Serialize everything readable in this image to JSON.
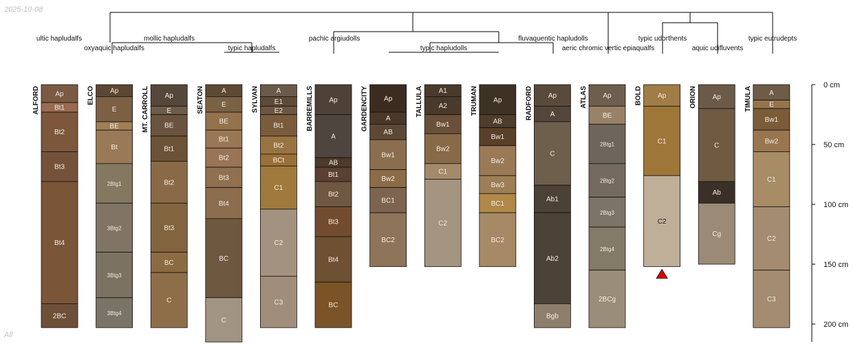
{
  "corner": {
    "date": "2025-10-08",
    "tag": "All"
  },
  "depth_axis": {
    "unit": "cm",
    "max_depth": 215,
    "ticks": [
      0,
      50,
      100,
      150,
      200
    ],
    "labels": [
      "0 cm",
      "50 cm",
      "100 cm",
      "150 cm",
      "200 cm"
    ]
  },
  "taxa": [
    "ultic hapludalfs",
    "oxyaquic hapludalfs",
    "mollic hapludalfs",
    "typic hapludalfs",
    "pachic argiudolls",
    "typic hapludolls",
    "fluvaquentic hapludolls",
    "aeric chromic vertic epiaqualfs",
    "typic udorthents",
    "aquic udifluvents",
    "typic eutrudepts"
  ],
  "marker": {
    "profile": "BOLD",
    "color": "#dd0000"
  },
  "profiles": [
    {
      "name": "ALFORD",
      "taxon": "ultic hapludalfs",
      "horizons": [
        {
          "name": "Ap",
          "top": 0,
          "bottom": 15,
          "color": "#7a5a42"
        },
        {
          "name": "Bt1",
          "top": 15,
          "bottom": 23,
          "color": "#9a6a52"
        },
        {
          "name": "Bt2",
          "top": 23,
          "bottom": 56,
          "color": "#7c573c"
        },
        {
          "name": "Bt3",
          "top": 56,
          "bottom": 81,
          "color": "#74523a"
        },
        {
          "name": "Bt4",
          "top": 81,
          "bottom": 183,
          "color": "#7b5538"
        },
        {
          "name": "2BC",
          "top": 183,
          "bottom": 203,
          "color": "#6e5038"
        }
      ]
    },
    {
      "name": "ELCO",
      "taxon": "oxyaquic hapludalfs",
      "horizons": [
        {
          "name": "Ap",
          "top": 0,
          "bottom": 10,
          "color": "#5c4634"
        },
        {
          "name": "E",
          "top": 10,
          "bottom": 31,
          "color": "#7c6044"
        },
        {
          "name": "BE",
          "top": 31,
          "bottom": 38,
          "color": "#a07e56"
        },
        {
          "name": "Bt",
          "top": 38,
          "bottom": 66,
          "color": "#9a7a56"
        },
        {
          "name": "2Btg1",
          "top": 66,
          "bottom": 99,
          "color": "#857860"
        },
        {
          "name": "3Btg2",
          "top": 99,
          "bottom": 140,
          "color": "#807564"
        },
        {
          "name": "3Btg3",
          "top": 140,
          "bottom": 178,
          "color": "#7c7262"
        },
        {
          "name": "3Btg4",
          "top": 178,
          "bottom": 203,
          "color": "#7a7466"
        }
      ]
    },
    {
      "name": "MT. CARROLL",
      "taxon": "mollic hapludalfs",
      "horizons": [
        {
          "name": "Ap",
          "top": 0,
          "bottom": 18,
          "color": "#55473a"
        },
        {
          "name": "E",
          "top": 18,
          "bottom": 25,
          "color": "#6e5c48"
        },
        {
          "name": "BE",
          "top": 25,
          "bottom": 43,
          "color": "#6a5440"
        },
        {
          "name": "Bt1",
          "top": 43,
          "bottom": 64,
          "color": "#6c5236"
        },
        {
          "name": "Bt2",
          "top": 64,
          "bottom": 99,
          "color": "#8a6a46"
        },
        {
          "name": "Bt3",
          "top": 99,
          "bottom": 140,
          "color": "#82643f"
        },
        {
          "name": "BC",
          "top": 140,
          "bottom": 157,
          "color": "#8c6a42"
        },
        {
          "name": "C",
          "top": 157,
          "bottom": 203,
          "color": "#8e6e48"
        }
      ]
    },
    {
      "name": "SEATON",
      "taxon": "typic hapludalfs",
      "horizons": [
        {
          "name": "A",
          "top": 0,
          "bottom": 10,
          "color": "#5e4a34"
        },
        {
          "name": "E",
          "top": 10,
          "bottom": 23,
          "color": "#7c6244"
        },
        {
          "name": "BE",
          "top": 23,
          "bottom": 38,
          "color": "#94724e"
        },
        {
          "name": "Bt1",
          "top": 38,
          "bottom": 53,
          "color": "#9a7754"
        },
        {
          "name": "Bt2",
          "top": 53,
          "bottom": 69,
          "color": "#9a7456"
        },
        {
          "name": "Bt3",
          "top": 69,
          "bottom": 86,
          "color": "#907050"
        },
        {
          "name": "Bt4",
          "top": 86,
          "bottom": 112,
          "color": "#8c6d4e"
        },
        {
          "name": "BC",
          "top": 112,
          "bottom": 178,
          "color": "#6e5840"
        },
        {
          "name": "C",
          "top": 178,
          "bottom": 215,
          "color": "#a29482"
        }
      ]
    },
    {
      "name": "SYLVAN",
      "taxon": "typic hapludalfs",
      "horizons": [
        {
          "name": "A",
          "top": 0,
          "bottom": 10,
          "color": "#6a5a4a"
        },
        {
          "name": "E1",
          "top": 10,
          "bottom": 18,
          "color": "#5e4a36"
        },
        {
          "name": "E2",
          "top": 18,
          "bottom": 25,
          "color": "#6c5640"
        },
        {
          "name": "Bt1",
          "top": 25,
          "bottom": 43,
          "color": "#7a5c3c"
        },
        {
          "name": "Bt2",
          "top": 43,
          "bottom": 58,
          "color": "#9a7440"
        },
        {
          "name": "BCt",
          "top": 58,
          "bottom": 68,
          "color": "#9a7038"
        },
        {
          "name": "C1",
          "top": 68,
          "bottom": 104,
          "color": "#a07a3c"
        },
        {
          "name": "C2",
          "top": 104,
          "bottom": 160,
          "color": "#a49280"
        },
        {
          "name": "C3",
          "top": 160,
          "bottom": 203,
          "color": "#a08e7a"
        }
      ]
    },
    {
      "name": "BARREMILLS",
      "taxon": "pachic argiudolls",
      "horizons": [
        {
          "name": "Ap",
          "top": 0,
          "bottom": 25,
          "color": "#4e4238"
        },
        {
          "name": "A",
          "top": 25,
          "bottom": 61,
          "color": "#4e463e"
        },
        {
          "name": "AB",
          "top": 61,
          "bottom": 69,
          "color": "#4e3a2a"
        },
        {
          "name": "Bt1",
          "top": 69,
          "bottom": 81,
          "color": "#5a4030"
        },
        {
          "name": "Bt2",
          "top": 81,
          "bottom": 102,
          "color": "#6e5842"
        },
        {
          "name": "Bt3",
          "top": 102,
          "bottom": 127,
          "color": "#724c2e"
        },
        {
          "name": "Bt4",
          "top": 127,
          "bottom": 165,
          "color": "#6e5032"
        },
        {
          "name": "BC",
          "top": 165,
          "bottom": 203,
          "color": "#7a5426"
        }
      ]
    },
    {
      "name": "GARDENCITY",
      "taxon": "typic hapludolls",
      "horizons": [
        {
          "name": "Ap",
          "top": 0,
          "bottom": 23,
          "color": "#3c2c20"
        },
        {
          "name": "A",
          "top": 23,
          "bottom": 33,
          "color": "#4a3828"
        },
        {
          "name": "AB",
          "top": 33,
          "bottom": 46,
          "color": "#5c4834"
        },
        {
          "name": "Bw1",
          "top": 46,
          "bottom": 71,
          "color": "#8a6e4e"
        },
        {
          "name": "Bw2",
          "top": 71,
          "bottom": 86,
          "color": "#8c6c46"
        },
        {
          "name": "BC1",
          "top": 86,
          "bottom": 107,
          "color": "#7c6450"
        },
        {
          "name": "BC2",
          "top": 107,
          "bottom": 152,
          "color": "#8e7458"
        }
      ]
    },
    {
      "name": "TALLULA",
      "taxon": "typic hapludolls",
      "horizons": [
        {
          "name": "A1",
          "top": 0,
          "bottom": 10,
          "color": "#4a3a2c"
        },
        {
          "name": "A2",
          "top": 10,
          "bottom": 25,
          "color": "#4a3a2c"
        },
        {
          "name": "Bw1",
          "top": 25,
          "bottom": 41,
          "color": "#6a5038"
        },
        {
          "name": "Bw2",
          "top": 41,
          "bottom": 66,
          "color": "#886a48"
        },
        {
          "name": "C1",
          "top": 66,
          "bottom": 79,
          "color": "#a48a6a"
        },
        {
          "name": "C2",
          "top": 79,
          "bottom": 152,
          "color": "#a49480"
        }
      ]
    },
    {
      "name": "TRUMAN",
      "taxon": "typic hapludolls",
      "horizons": [
        {
          "name": "Ap",
          "top": 0,
          "bottom": 25,
          "color": "#3e3224"
        },
        {
          "name": "AB",
          "top": 25,
          "bottom": 36,
          "color": "#4e3c2c"
        },
        {
          "name": "Bw1",
          "top": 36,
          "bottom": 51,
          "color": "#5a4028"
        },
        {
          "name": "Bw2",
          "top": 51,
          "bottom": 76,
          "color": "#9a7a56"
        },
        {
          "name": "Bw3",
          "top": 76,
          "bottom": 91,
          "color": "#9e7e56"
        },
        {
          "name": "BC1",
          "top": 91,
          "bottom": 107,
          "color": "#b08848"
        },
        {
          "name": "BC2",
          "top": 107,
          "bottom": 152,
          "color": "#a68a66"
        }
      ]
    },
    {
      "name": "RADFORD",
      "taxon": "fluvaquentic hapludolls",
      "horizons": [
        {
          "name": "Ap",
          "top": 0,
          "bottom": 18,
          "color": "#5a4a3c"
        },
        {
          "name": "A",
          "top": 18,
          "bottom": 31,
          "color": "#54463a"
        },
        {
          "name": "C",
          "top": 31,
          "bottom": 84,
          "color": "#6e5e4c"
        },
        {
          "name": "Ab1",
          "top": 84,
          "bottom": 107,
          "color": "#4c4136"
        },
        {
          "name": "Ab2",
          "top": 107,
          "bottom": 183,
          "color": "#4c4238"
        },
        {
          "name": "Bgb",
          "top": 183,
          "bottom": 203,
          "color": "#8e7e6c"
        }
      ]
    },
    {
      "name": "ATLAS",
      "taxon": "aeric chromic vertic epiaqualfs",
      "horizons": [
        {
          "name": "Ap",
          "top": 0,
          "bottom": 18,
          "color": "#6e5e4e"
        },
        {
          "name": "BE",
          "top": 18,
          "bottom": 33,
          "color": "#9a8268"
        },
        {
          "name": "2Btg1",
          "top": 33,
          "bottom": 66,
          "color": "#6e655c"
        },
        {
          "name": "2Btg2",
          "top": 66,
          "bottom": 94,
          "color": "#746a5e"
        },
        {
          "name": "2Btg3",
          "top": 94,
          "bottom": 119,
          "color": "#7c7466"
        },
        {
          "name": "2Btg4",
          "top": 119,
          "bottom": 155,
          "color": "#847a68"
        },
        {
          "name": "2BCg",
          "top": 155,
          "bottom": 203,
          "color": "#9a8e7a"
        }
      ]
    },
    {
      "name": "BOLD",
      "taxon": "typic udorthents",
      "horizons": [
        {
          "name": "Ap",
          "top": 0,
          "bottom": 18,
          "color": "#a07c46"
        },
        {
          "name": "C1",
          "top": 18,
          "bottom": 76,
          "color": "#9e7638"
        },
        {
          "name": "C2",
          "top": 76,
          "bottom": 152,
          "color": "#bfae98"
        }
      ]
    },
    {
      "name": "ORION",
      "taxon": "aquic udifluvents",
      "horizons": [
        {
          "name": "Ap",
          "top": 0,
          "bottom": 20,
          "color": "#6c5a48"
        },
        {
          "name": "C",
          "top": 20,
          "bottom": 81,
          "color": "#705a42"
        },
        {
          "name": "Ab",
          "top": 81,
          "bottom": 99,
          "color": "#3a3028"
        },
        {
          "name": "Cg",
          "top": 99,
          "bottom": 150,
          "color": "#9a8a76"
        }
      ]
    },
    {
      "name": "TIMULA",
      "taxon": "typic eutrudepts",
      "horizons": [
        {
          "name": "A",
          "top": 0,
          "bottom": 13,
          "color": "#6e5c48"
        },
        {
          "name": "E",
          "top": 13,
          "bottom": 20,
          "color": "#96744c"
        },
        {
          "name": "Bw1",
          "top": 20,
          "bottom": 38,
          "color": "#7a5c38"
        },
        {
          "name": "Bw2",
          "top": 38,
          "bottom": 56,
          "color": "#9a7650"
        },
        {
          "name": "C1",
          "top": 56,
          "bottom": 102,
          "color": "#a88c66"
        },
        {
          "name": "C2",
          "top": 102,
          "bottom": 155,
          "color": "#a48c70"
        },
        {
          "name": "C3",
          "top": 155,
          "bottom": 203,
          "color": "#a48c70"
        }
      ]
    }
  ]
}
